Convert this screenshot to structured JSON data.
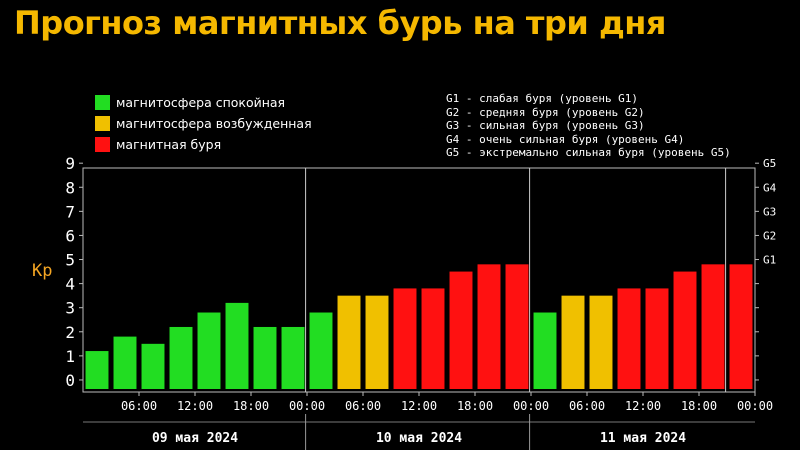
{
  "title": "Прогноз магнитных бурь на три дня",
  "legend": [
    {
      "label": "магнитосфера спокойная",
      "color": "#22dd22"
    },
    {
      "label": "магнитосфера возбужденная",
      "color": "#f0c000"
    },
    {
      "label": "магнитная буря",
      "color": "#ff1111"
    }
  ],
  "g_scale": [
    "G1 - слабая буря (уровень G1)",
    "G2 - средняя буря (уровень G2)",
    "G3 - сильная буря (уровень G3)",
    "G4 - очень сильная буря (уровень G4)",
    "G5 - экстремально сильная буря (уровень G5)"
  ],
  "chart_data": {
    "type": "bar",
    "ylabel": "Kp",
    "ylim": [
      0,
      9
    ],
    "yticks": [
      0,
      1,
      2,
      3,
      4,
      5,
      6,
      7,
      8,
      9
    ],
    "right_axis_labels": [
      {
        "label": "G1",
        "value": 5
      },
      {
        "label": "G2",
        "value": 6
      },
      {
        "label": "G3",
        "value": 7
      },
      {
        "label": "G4",
        "value": 8
      },
      {
        "label": "G5",
        "value": 9
      }
    ],
    "time_labels": [
      "06:00",
      "12:00",
      "18:00",
      "00:00"
    ],
    "days": [
      {
        "label": "09 мая 2024",
        "values": [
          1.7,
          2.3,
          2.0,
          2.7,
          3.3,
          3.7,
          2.7,
          2.7
        ]
      },
      {
        "label": "10 мая 2024",
        "values": [
          3.3,
          4.0,
          4.0,
          4.3,
          4.3,
          5.0,
          5.3,
          5.3
        ]
      },
      {
        "label": "11 мая 2024",
        "values": [
          3.3,
          4.0,
          4.0,
          4.3,
          4.3,
          5.0,
          5.3,
          5.3
        ]
      }
    ],
    "color_thresholds": {
      "quiet_below": 4,
      "storm_from": 4.3
    },
    "colors": {
      "quiet": "#22dd22",
      "active": "#f0c000",
      "storm": "#ff1111"
    }
  }
}
